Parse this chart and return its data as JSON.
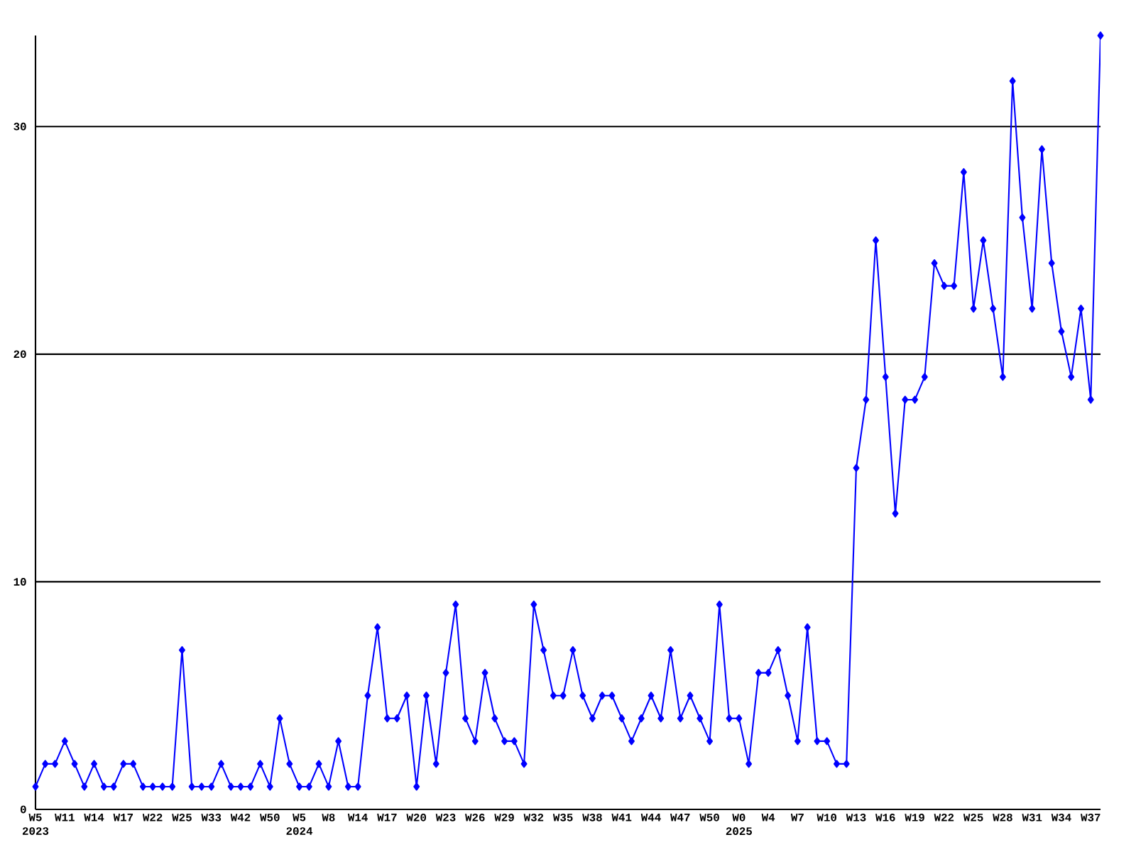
{
  "chart_data": {
    "type": "line",
    "categories": [
      "W5 2023",
      null,
      null,
      "W11",
      null,
      null,
      "W14",
      null,
      null,
      "W17",
      null,
      null,
      "W22",
      null,
      null,
      "W25",
      null,
      null,
      "W33",
      null,
      null,
      "W42",
      null,
      null,
      "W50",
      null,
      null,
      "W5 2024",
      null,
      null,
      "W8",
      null,
      null,
      "W14",
      null,
      null,
      "W17",
      null,
      null,
      "W20",
      null,
      null,
      "W23",
      null,
      null,
      "W26",
      null,
      null,
      "W29",
      null,
      null,
      "W32",
      null,
      null,
      "W35",
      null,
      null,
      "W38",
      null,
      null,
      "W41",
      null,
      null,
      "W44",
      null,
      null,
      "W47",
      null,
      null,
      "W50",
      null,
      null,
      "W0 2025",
      null,
      null,
      "W4",
      null,
      null,
      "W7",
      null,
      null,
      "W10",
      null,
      null,
      "W13",
      null,
      null,
      "W16",
      null,
      null,
      "W19",
      null,
      null,
      "W22",
      null,
      null,
      "W25",
      null,
      null,
      "W28",
      null,
      null,
      "W31",
      null,
      null,
      "W34",
      null,
      null,
      "W37",
      null
    ],
    "series": [
      {
        "color": "#0000ff",
        "values": [
          1,
          2,
          2,
          3,
          2,
          1,
          2,
          1,
          1,
          2,
          2,
          1,
          1,
          1,
          1,
          7,
          1,
          1,
          1,
          2,
          1,
          1,
          1,
          2,
          1,
          4,
          2,
          1,
          1,
          2,
          1,
          3,
          1,
          1,
          5,
          8,
          4,
          4,
          5,
          1,
          5,
          2,
          6,
          9,
          4,
          3,
          6,
          4,
          3,
          3,
          2,
          9,
          7,
          5,
          5,
          7,
          5,
          4,
          5,
          5,
          4,
          3,
          4,
          5,
          4,
          7,
          4,
          5,
          4,
          3,
          9,
          4,
          4,
          2,
          6,
          6,
          7,
          5,
          3,
          8,
          3,
          3,
          2,
          2,
          15,
          18,
          25,
          19,
          13,
          18,
          18,
          19,
          24,
          23,
          23,
          28,
          22,
          25,
          22,
          19,
          32,
          26,
          22,
          29,
          24,
          21,
          19,
          22,
          18,
          34
        ]
      }
    ],
    "ylim": [
      0,
      34
    ],
    "yticks": [
      0,
      10,
      20,
      30
    ],
    "grid": "y",
    "marker": "diamond",
    "line_style": "solid"
  }
}
